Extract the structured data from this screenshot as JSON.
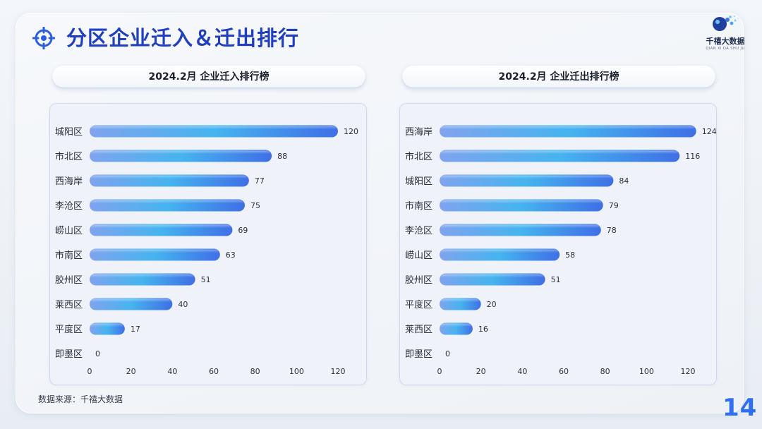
{
  "page": {
    "title": "分区企业迁入＆迁出排行",
    "source": "数据来源：千禧大数据",
    "page_number": "14",
    "accent_color": "#1f3fbf"
  },
  "logo": {
    "name": "千禧大数据",
    "subtitle": "QIAN XI DA SHU JU"
  },
  "chart_data": [
    {
      "type": "bar",
      "orientation": "horizontal",
      "title": "2024.2月 企业迁入排行榜",
      "categories": [
        "城阳区",
        "市北区",
        "西海岸",
        "李沧区",
        "崂山区",
        "市南区",
        "胶州区",
        "莱西区",
        "平度区",
        "即墨区"
      ],
      "values": [
        120,
        88,
        77,
        75,
        69,
        63,
        51,
        40,
        17,
        0
      ],
      "xlim": [
        0,
        120
      ],
      "xticks": [
        0,
        20,
        40,
        60,
        80,
        100,
        120
      ],
      "bar_color_start": "#7fa4ee",
      "bar_color_mid": "#46b4ef",
      "bar_color_end": "#3f6fe6"
    },
    {
      "type": "bar",
      "orientation": "horizontal",
      "title": "2024.2月 企业迁出排行榜",
      "categories": [
        "西海岸",
        "市北区",
        "城阳区",
        "市南区",
        "李沧区",
        "崂山区",
        "胶州区",
        "平度区",
        "莱西区",
        "即墨区"
      ],
      "values": [
        124,
        116,
        84,
        79,
        78,
        58,
        51,
        20,
        16,
        0
      ],
      "xlim": [
        0,
        120
      ],
      "xticks": [
        0,
        20,
        40,
        60,
        80,
        100,
        120
      ],
      "bar_color_start": "#7fa4ee",
      "bar_color_mid": "#46b4ef",
      "bar_color_end": "#3f6fe6"
    }
  ]
}
